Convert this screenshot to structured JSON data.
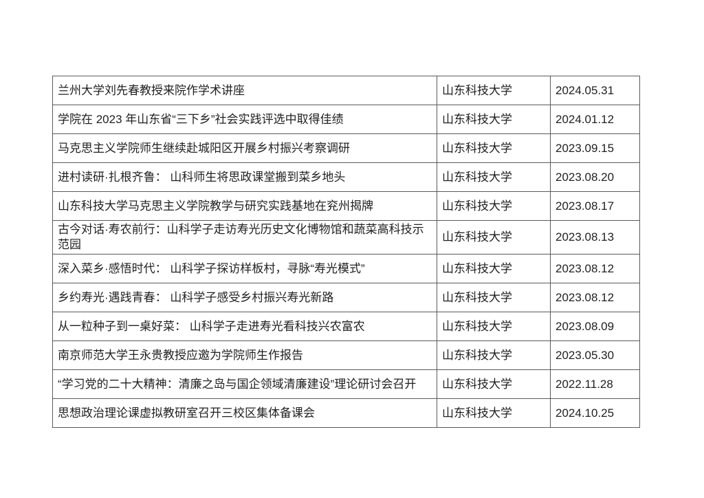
{
  "page": {
    "background_color": "#ffffff"
  },
  "table": {
    "border_color": "#595959",
    "text_color": "#1f1f1f",
    "rows": [
      {
        "title": "兰州大学刘先春教授来院作学术讲座",
        "organization": "山东科技大学",
        "date": "2024.05.31"
      },
      {
        "title": "学院在 2023 年山东省“三下乡”社会实践评选中取得佳绩",
        "organization": "山东科技大学",
        "date": "2024.01.12"
      },
      {
        "title": "马克思主义学院师生继续赴城阳区开展乡村振兴考察调研",
        "organization": "山东科技大学",
        "date": "2023.09.15"
      },
      {
        "title": "进村读研·扎根齐鲁： 山科师生将思政课堂搬到菜乡地头",
        "organization": "山东科技大学",
        "date": "2023.08.20"
      },
      {
        "title": "山东科技大学马克思主义学院教学与研究实践基地在兖州揭牌",
        "organization": "山东科技大学",
        "date": "2023.08.17"
      },
      {
        "title": "古今对话·寿农前行：山科学子走访寿光历史文化博物馆和蔬菜高科技示范园",
        "organization": "山东科技大学",
        "date": "2023.08.13"
      },
      {
        "title": "深入菜乡·感悟时代： 山科学子探访样板村，寻脉“寿光模式”",
        "organization": "山东科技大学",
        "date": "2023.08.12"
      },
      {
        "title": "乡约寿光·遇践青春： 山科学子感受乡村振兴寿光新路",
        "organization": "山东科技大学",
        "date": "2023.08.12"
      },
      {
        "title": "从一粒种子到一桌好菜： 山科学子走进寿光看科技兴农富农",
        "organization": "山东科技大学",
        "date": "2023.08.09"
      },
      {
        "title": "南京师范大学王永贵教授应邀为学院师生作报告",
        "organization": "山东科技大学",
        "date": "2023.05.30"
      },
      {
        "title": "“学习党的二十大精神：清廉之岛与国企领域清廉建设”理论研讨会召开",
        "organization": "山东科技大学",
        "date": "2022.11.28"
      },
      {
        "title": "思想政治理论课虚拟教研室召开三校区集体备课会",
        "organization": "山东科技大学",
        "date": "2024.10.25"
      }
    ]
  }
}
